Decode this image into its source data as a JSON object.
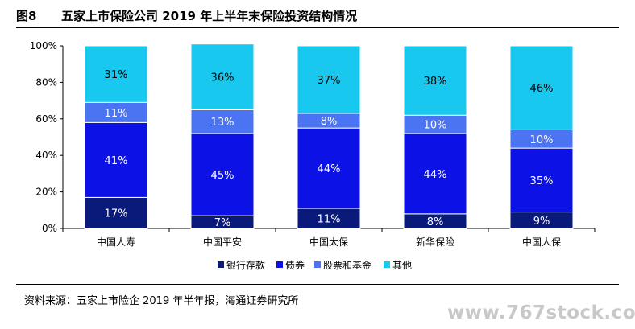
{
  "header": {
    "figure_label": "图8",
    "title": "五家上市保险公司 2019 年上半年末保险投资结构情况"
  },
  "chart_data": {
    "type": "bar",
    "stacked": true,
    "categories": [
      "中国人寿",
      "中国平安",
      "中国太保",
      "新华保险",
      "中国人保"
    ],
    "series": [
      {
        "name": "银行存款",
        "values": [
          17,
          7,
          11,
          8,
          9
        ],
        "color": "#0a1a7a",
        "label_color": "#ffffff"
      },
      {
        "name": "债券",
        "values": [
          41,
          45,
          44,
          44,
          35
        ],
        "color": "#0c12e6",
        "label_color": "#ffffff"
      },
      {
        "name": "股票和基金",
        "values": [
          11,
          13,
          8,
          10,
          10
        ],
        "color": "#4a74f2",
        "label_color": "#ffffff"
      },
      {
        "name": "其他",
        "values": [
          31,
          36,
          37,
          38,
          46
        ],
        "color": "#19c8ee",
        "label_color": "#000000"
      }
    ],
    "data_labels": [
      [
        "17%",
        "7%",
        "11%",
        "8%",
        "9%"
      ],
      [
        "41%",
        "45%",
        "44%",
        "44%",
        "35%"
      ],
      [
        "11%",
        "13%",
        "8%",
        "10%",
        "10%"
      ],
      [
        "31%",
        "36%",
        "37%",
        "38%",
        "46%"
      ]
    ],
    "ylim": [
      0,
      100
    ],
    "yticks": [
      0,
      20,
      40,
      60,
      80,
      100
    ],
    "ytick_labels": [
      "0%",
      "20%",
      "40%",
      "60%",
      "80%",
      "100%"
    ],
    "grid": false,
    "legend_position": "bottom"
  },
  "source": "资料来源：五家上市险企 2019 年半年报，海通证券研究所",
  "watermark": "www.767stock.com"
}
